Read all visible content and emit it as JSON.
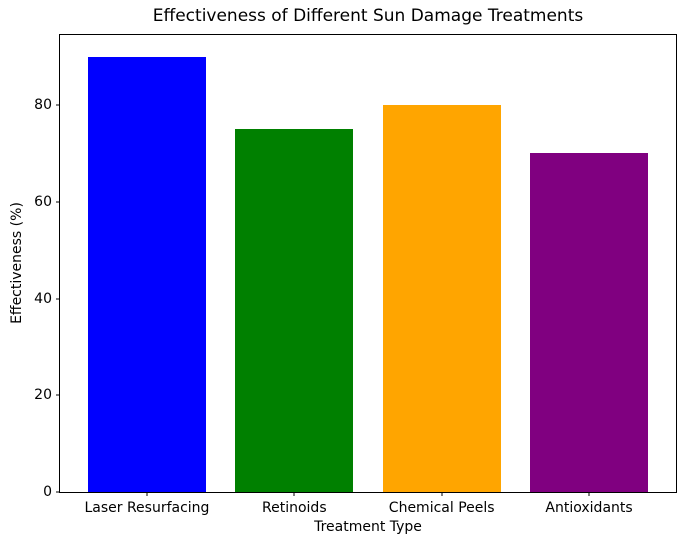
{
  "chart_data": {
    "type": "bar",
    "title": "Effectiveness of Different Sun Damage Treatments",
    "xlabel": "Treatment Type",
    "ylabel": "Effectiveness (%)",
    "categories": [
      "Laser Resurfacing",
      "Retinoids",
      "Chemical Peels",
      "Antioxidants"
    ],
    "values": [
      90,
      75,
      80,
      70
    ],
    "bar_colors": [
      "#0000ff",
      "#008000",
      "#ffa500",
      "#800080"
    ],
    "ylim": [
      0,
      94.5
    ],
    "xlim": [
      -0.59,
      3.59
    ],
    "bar_width": 0.8,
    "yticks": [
      0,
      20,
      40,
      60,
      80
    ],
    "grid": false,
    "legend_position": "none"
  },
  "colors": {
    "background": "#ffffff",
    "spine": "#000000",
    "text": "#000000"
  }
}
